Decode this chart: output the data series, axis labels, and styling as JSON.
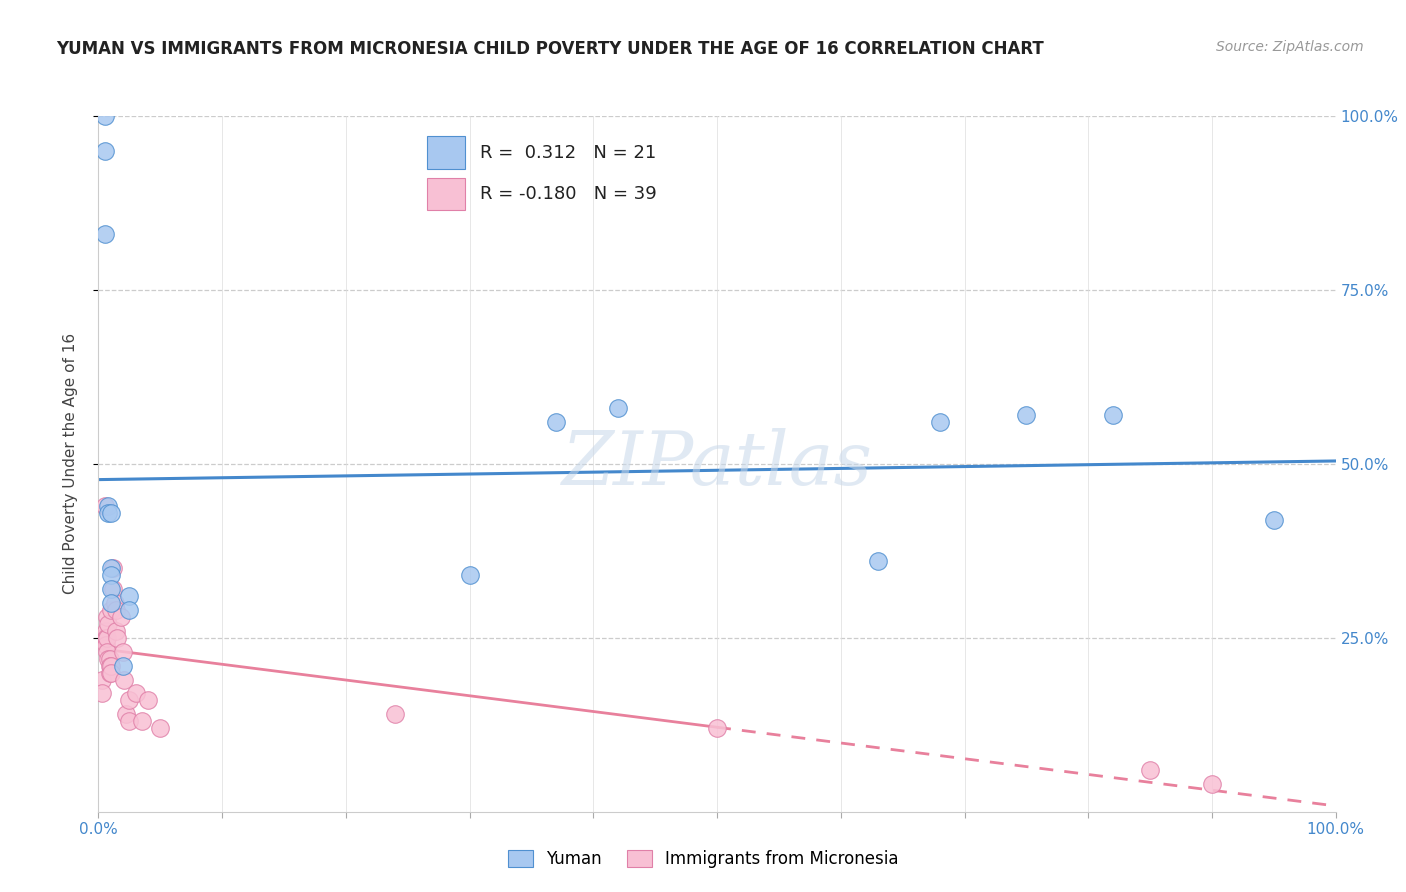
{
  "title": "YUMAN VS IMMIGRANTS FROM MICRONESIA CHILD POVERTY UNDER THE AGE OF 16 CORRELATION CHART",
  "source": "Source: ZipAtlas.com",
  "ylabel": "Child Poverty Under the Age of 16",
  "r_yuman": 0.312,
  "n_yuman": 21,
  "r_micronesia": -0.18,
  "n_micronesia": 39,
  "yuman_color": "#a8c8f0",
  "yuman_edge": "#5090d0",
  "micronesia_color": "#f8c0d4",
  "micronesia_edge": "#e080a8",
  "trendline_yuman_color": "#4488cc",
  "trendline_micronesia_color": "#e8809c",
  "watermark": "ZIPatlas",
  "background_color": "#ffffff",
  "legend_label_yuman": "Yuman",
  "legend_label_micronesia": "Immigrants from Micronesia",
  "yuman_x": [
    0.005,
    0.005,
    0.005,
    0.008,
    0.008,
    0.01,
    0.01,
    0.01,
    0.01,
    0.01,
    0.02,
    0.025,
    0.025,
    0.3,
    0.37,
    0.42,
    0.63,
    0.68,
    0.75,
    0.82,
    0.95
  ],
  "yuman_y": [
    1.0,
    0.95,
    0.83,
    0.44,
    0.43,
    0.43,
    0.35,
    0.34,
    0.32,
    0.3,
    0.21,
    0.31,
    0.29,
    0.34,
    0.56,
    0.58,
    0.36,
    0.56,
    0.57,
    0.57,
    0.42
  ],
  "micronesia_x": [
    0.003,
    0.003,
    0.004,
    0.005,
    0.005,
    0.006,
    0.006,
    0.006,
    0.007,
    0.007,
    0.007,
    0.008,
    0.008,
    0.009,
    0.009,
    0.009,
    0.01,
    0.01,
    0.01,
    0.012,
    0.012,
    0.013,
    0.014,
    0.014,
    0.015,
    0.018,
    0.02,
    0.021,
    0.022,
    0.025,
    0.025,
    0.03,
    0.035,
    0.04,
    0.05,
    0.24,
    0.5,
    0.85,
    0.9
  ],
  "micronesia_y": [
    0.19,
    0.17,
    0.25,
    0.44,
    0.25,
    0.26,
    0.25,
    0.24,
    0.28,
    0.25,
    0.23,
    0.22,
    0.27,
    0.22,
    0.21,
    0.2,
    0.29,
    0.21,
    0.2,
    0.35,
    0.32,
    0.3,
    0.29,
    0.26,
    0.25,
    0.28,
    0.23,
    0.19,
    0.14,
    0.16,
    0.13,
    0.17,
    0.13,
    0.16,
    0.12,
    0.14,
    0.12,
    0.06,
    0.04
  ],
  "trendline_yuman_x0": 0.0,
  "trendline_yuman_x1": 1.0,
  "trendline_micronesia_x0": 0.0,
  "trendline_micronesia_x1": 1.0,
  "trendline_micronesia_solid_end": 0.5,
  "xlim": [
    0,
    1.0
  ],
  "ylim": [
    0,
    1.0
  ],
  "xgrid_ticks": [
    0.1,
    0.2,
    0.3,
    0.4,
    0.5,
    0.6,
    0.7,
    0.8,
    0.9
  ],
  "ygrid_ticks": [
    0.25,
    0.5,
    0.75,
    1.0
  ]
}
